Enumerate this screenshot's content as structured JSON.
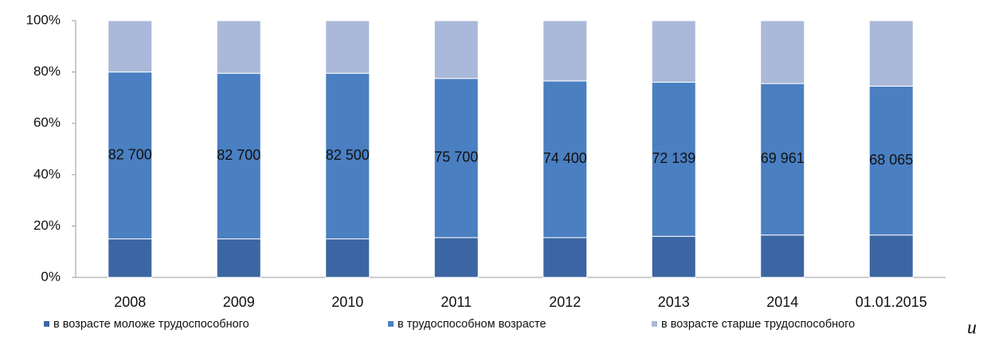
{
  "chart_data": {
    "type": "stacked_bar_100",
    "categories": [
      "2008",
      "2009",
      "2010",
      "2011",
      "2012",
      "2013",
      "2014",
      "01.01.2015"
    ],
    "series": [
      {
        "name": "в возрасте моложе трудоспособного",
        "color": "#3c66a3",
        "values": [
          15,
          15,
          15,
          15.5,
          15.5,
          16,
          16.5,
          16.5
        ]
      },
      {
        "name": "в трудоспособном возрасте",
        "color": "#4a7fc1",
        "values": [
          65,
          64.5,
          64.5,
          62,
          61,
          60,
          59,
          58
        ],
        "annotations": [
          "82 700",
          "82 700",
          "82 500",
          "75 700",
          "74 400",
          "72 139",
          "69 961",
          "68 065"
        ]
      },
      {
        "name": "в возрасте старше трудоспособного",
        "color": "#aab9d9",
        "values": [
          20,
          20.5,
          20.5,
          22.5,
          23.5,
          24,
          24.5,
          25.5
        ]
      }
    ],
    "ylim": [
      0,
      100
    ],
    "yticks": [
      {
        "value": 0,
        "label": "0%"
      },
      {
        "value": 20,
        "label": "20%"
      },
      {
        "value": 40,
        "label": "40%"
      },
      {
        "value": 60,
        "label": "60%"
      },
      {
        "value": 80,
        "label": "80%"
      },
      {
        "value": 100,
        "label": "100%"
      }
    ],
    "grid": false,
    "legend": "bottom"
  },
  "trailing_text": "и"
}
